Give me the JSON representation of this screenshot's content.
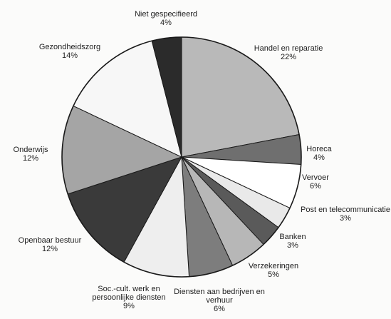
{
  "chart_data": {
    "type": "pie",
    "title": "",
    "slices": [
      {
        "name": "Handel en reparatie",
        "pct_label": "22%",
        "value": 22,
        "color": "#b9b9b9"
      },
      {
        "name": "Horeca",
        "pct_label": "4%",
        "value": 4,
        "color": "#6f6f6f"
      },
      {
        "name": "Vervoer",
        "pct_label": "6%",
        "value": 6,
        "color": "#ffffff"
      },
      {
        "name": "Post en telecommunicatie",
        "pct_label": "3%",
        "value": 3,
        "color": "#e9e9e9"
      },
      {
        "name": "Banken",
        "pct_label": "3%",
        "value": 3,
        "color": "#5a5a5a"
      },
      {
        "name": "Verzekeringen",
        "pct_label": "5%",
        "value": 5,
        "color": "#b7b7b7"
      },
      {
        "name": "Diensten aan bedrijven en verhuur",
        "pct_label": "6%",
        "value": 6,
        "color": "#7d7d7d"
      },
      {
        "name": "Soc.-cult. werk en persoonlijke diensten",
        "pct_label": "9%",
        "value": 9,
        "color": "#eeeeee"
      },
      {
        "name": "Openbaar bestuur",
        "pct_label": "12%",
        "value": 12,
        "color": "#3a3a3a"
      },
      {
        "name": "Onderwijs",
        "pct_label": "12%",
        "value": 12,
        "color": "#a5a5a5"
      },
      {
        "name": "Gezondheidszorg",
        "pct_label": "14%",
        "value": 14,
        "color": "#f7f7f7"
      },
      {
        "name": "Niet gespecifieerd",
        "pct_label": "4%",
        "value": 4,
        "color": "#2b2b2b"
      }
    ],
    "labels": [
      {
        "lines": [
          "Handel en reparatie",
          "22%"
        ]
      },
      {
        "lines": [
          "Horeca",
          "4%"
        ]
      },
      {
        "lines": [
          "Vervoer",
          "6%"
        ]
      },
      {
        "lines": [
          "Post en telecommunicatie",
          "3%"
        ]
      },
      {
        "lines": [
          "Banken",
          "3%"
        ]
      },
      {
        "lines": [
          "Verzekeringen",
          "5%"
        ]
      },
      {
        "lines": [
          "Diensten aan bedrijven en",
          "verhuur",
          "6%"
        ]
      },
      {
        "lines": [
          "Soc.-cult. werk en",
          "persoonlijke diensten",
          "9%"
        ]
      },
      {
        "lines": [
          "Openbaar bestuur",
          "12%"
        ]
      },
      {
        "lines": [
          "Onderwijs",
          "12%"
        ]
      },
      {
        "lines": [
          "Gezondheidszorg",
          "14%"
        ]
      },
      {
        "lines": [
          "Niet gespecifieerd",
          "4%"
        ]
      }
    ]
  }
}
